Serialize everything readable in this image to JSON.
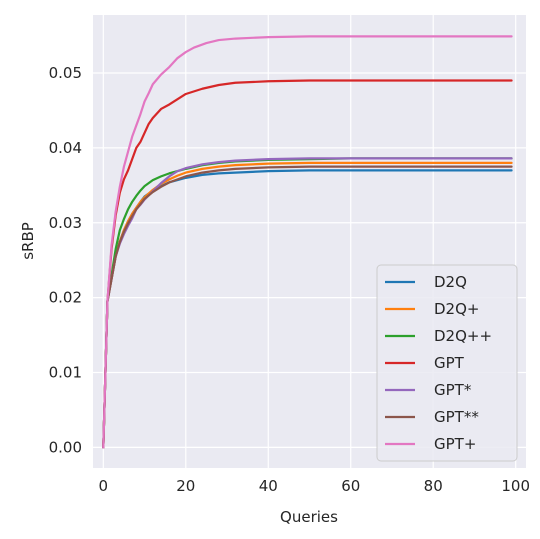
{
  "chart_data": {
    "type": "line",
    "xlabel": "Queries",
    "ylabel": "sRBP",
    "xlim": [
      -2.5,
      102.5
    ],
    "ylim": [
      -0.00275,
      0.05775
    ],
    "xticks": [
      0,
      20,
      40,
      60,
      80,
      100
    ],
    "xtick_labels": [
      "0",
      "20",
      "40",
      "60",
      "80",
      "100"
    ],
    "yticks": [
      0.0,
      0.01,
      0.02,
      0.03,
      0.04,
      0.05
    ],
    "ytick_labels": [
      "0.00",
      "0.01",
      "0.02",
      "0.03",
      "0.04",
      "0.05"
    ],
    "grid": true,
    "legend_position": "lower-right",
    "series": [
      {
        "name": "D2Q",
        "color": "#1f77b4",
        "x": [
          0,
          1,
          2,
          3,
          4,
          5,
          6,
          7,
          8,
          9,
          10,
          12,
          14,
          16,
          18,
          20,
          24,
          28,
          32,
          40,
          50,
          60,
          70,
          80,
          90,
          99
        ],
        "y": [
          0.0,
          0.0195,
          0.0225,
          0.0255,
          0.0275,
          0.029,
          0.0302,
          0.0312,
          0.032,
          0.0328,
          0.0335,
          0.0343,
          0.0349,
          0.0354,
          0.0357,
          0.036,
          0.0364,
          0.0366,
          0.0367,
          0.0369,
          0.037,
          0.037,
          0.037,
          0.037,
          0.037,
          0.037
        ]
      },
      {
        "name": "D2Q+",
        "color": "#ff7f0e",
        "x": [
          0,
          1,
          2,
          3,
          4,
          5,
          6,
          7,
          8,
          9,
          10,
          12,
          14,
          16,
          18,
          20,
          24,
          28,
          32,
          40,
          50,
          60,
          70,
          80,
          90,
          99
        ],
        "y": [
          0.0,
          0.0195,
          0.0225,
          0.0255,
          0.0275,
          0.029,
          0.0302,
          0.0312,
          0.032,
          0.0328,
          0.0334,
          0.0344,
          0.0352,
          0.0358,
          0.0363,
          0.0367,
          0.0372,
          0.0375,
          0.0377,
          0.0379,
          0.038,
          0.038,
          0.038,
          0.038,
          0.038,
          0.038
        ]
      },
      {
        "name": "D2Q++",
        "color": "#2ca02c",
        "x": [
          0,
          1,
          2,
          3,
          4,
          5,
          6,
          7,
          8,
          9,
          10,
          12,
          14,
          16,
          18,
          20,
          24,
          28,
          32,
          40,
          50,
          60,
          70,
          80,
          90,
          99
        ],
        "y": [
          0.0,
          0.0195,
          0.023,
          0.0265,
          0.029,
          0.0305,
          0.0318,
          0.0328,
          0.0336,
          0.0343,
          0.0349,
          0.0357,
          0.0362,
          0.0366,
          0.0369,
          0.0372,
          0.0377,
          0.038,
          0.0382,
          0.0384,
          0.0385,
          0.0386,
          0.0386,
          0.0386,
          0.0386,
          0.0386
        ]
      },
      {
        "name": "GPT",
        "color": "#d62728",
        "x": [
          0,
          1,
          2,
          3,
          4,
          5,
          6,
          7,
          8,
          9,
          10,
          11,
          12,
          14,
          16,
          18,
          20,
          24,
          28,
          32,
          40,
          50,
          60,
          70,
          80,
          90,
          99
        ],
        "y": [
          0.0,
          0.0195,
          0.0265,
          0.031,
          0.034,
          0.0358,
          0.037,
          0.0385,
          0.04,
          0.0408,
          0.042,
          0.0432,
          0.044,
          0.0452,
          0.0458,
          0.0465,
          0.0472,
          0.0479,
          0.0484,
          0.0487,
          0.0489,
          0.049,
          0.049,
          0.049,
          0.049,
          0.049,
          0.049
        ]
      },
      {
        "name": "GPT*",
        "color": "#9467bd",
        "x": [
          0,
          1,
          2,
          3,
          4,
          5,
          6,
          7,
          8,
          9,
          10,
          12,
          14,
          16,
          18,
          20,
          24,
          28,
          32,
          40,
          50,
          60,
          70,
          80,
          90,
          99
        ],
        "y": [
          0.0,
          0.0195,
          0.0225,
          0.0255,
          0.0272,
          0.0285,
          0.0296,
          0.0306,
          0.0318,
          0.0324,
          0.0331,
          0.0342,
          0.0353,
          0.0362,
          0.0369,
          0.0373,
          0.0378,
          0.0381,
          0.0383,
          0.0385,
          0.0386,
          0.0386,
          0.0386,
          0.0386,
          0.0386,
          0.0386
        ]
      },
      {
        "name": "GPT**",
        "color": "#8c564b",
        "x": [
          0,
          1,
          2,
          3,
          4,
          5,
          6,
          7,
          8,
          9,
          10,
          12,
          14,
          16,
          18,
          20,
          24,
          28,
          32,
          40,
          50,
          60,
          70,
          80,
          90,
          99
        ],
        "y": [
          0.0,
          0.0195,
          0.0225,
          0.0255,
          0.0274,
          0.0288,
          0.0299,
          0.0309,
          0.0318,
          0.0325,
          0.0332,
          0.0341,
          0.0348,
          0.0354,
          0.0358,
          0.0362,
          0.0367,
          0.037,
          0.0372,
          0.0374,
          0.0375,
          0.0375,
          0.0375,
          0.0375,
          0.0375,
          0.0375
        ]
      },
      {
        "name": "GPT+",
        "color": "#e377c2",
        "x": [
          0,
          1,
          2,
          3,
          4,
          5,
          6,
          7,
          8,
          9,
          10,
          11,
          12,
          14,
          16,
          18,
          20,
          22,
          25,
          28,
          32,
          40,
          50,
          60,
          70,
          80,
          90,
          99
        ],
        "y": [
          0.0,
          0.0195,
          0.027,
          0.0315,
          0.0348,
          0.0375,
          0.0395,
          0.0415,
          0.043,
          0.0445,
          0.0462,
          0.0473,
          0.0485,
          0.0498,
          0.0508,
          0.052,
          0.0528,
          0.0534,
          0.054,
          0.0544,
          0.0546,
          0.0548,
          0.0549,
          0.0549,
          0.0549,
          0.0549,
          0.0549,
          0.0549
        ]
      }
    ]
  }
}
